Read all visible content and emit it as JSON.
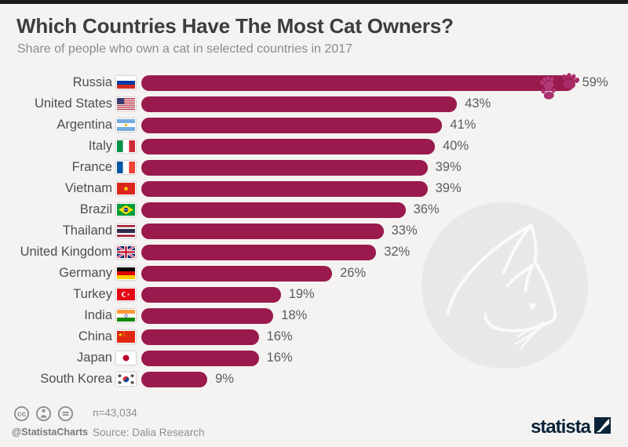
{
  "window": {
    "top_strip_color": "#1a1a1a",
    "background_color": "#f4f3f2"
  },
  "header": {
    "title": "Which Countries Have The Most Cat Owners?",
    "subtitle": "Share of people who own a cat in selected countries in 2017"
  },
  "chart_data": {
    "type": "bar",
    "orientation": "horizontal",
    "title": "Which Countries Have The Most Cat Owners?",
    "subtitle": "Share of people who own a cat in selected countries in 2017",
    "unit": "%",
    "xlim": [
      0,
      63
    ],
    "grid": false,
    "legend": false,
    "bar_color": "#9a1a4d",
    "categories": [
      "Russia",
      "United States",
      "Argentina",
      "Italy",
      "France",
      "Vietnam",
      "Brazil",
      "Thailand",
      "United Kingdom",
      "Germany",
      "Turkey",
      "India",
      "China",
      "Japan",
      "South Korea"
    ],
    "values": [
      59,
      43,
      41,
      40,
      39,
      39,
      36,
      33,
      32,
      26,
      19,
      18,
      16,
      16,
      9
    ],
    "flag_icons": [
      "ru",
      "us",
      "ar",
      "it",
      "fr",
      "vn",
      "br",
      "th",
      "gb",
      "de",
      "tr",
      "in",
      "cn",
      "jp",
      "kr"
    ],
    "decoration": {
      "row": 0,
      "icon": "paw-prints-icon",
      "paw_colors": [
        "#b23a78",
        "#a82a66",
        "#ad3270"
      ]
    }
  },
  "watermark": {
    "icon": "cat-sketch-icon",
    "circle_color": "#e9e8e6",
    "line_color": "#fafafa"
  },
  "footer": {
    "license_icons": [
      "cc-icon",
      "attribution-icon",
      "no-derivatives-icon"
    ],
    "icon_color": "#8e8e8e",
    "handle": "@StatistaCharts",
    "sample_size": "n=43,034",
    "source": "Source: Dalia Research",
    "logo_text": "statista",
    "logo_color": "#0b2338"
  }
}
